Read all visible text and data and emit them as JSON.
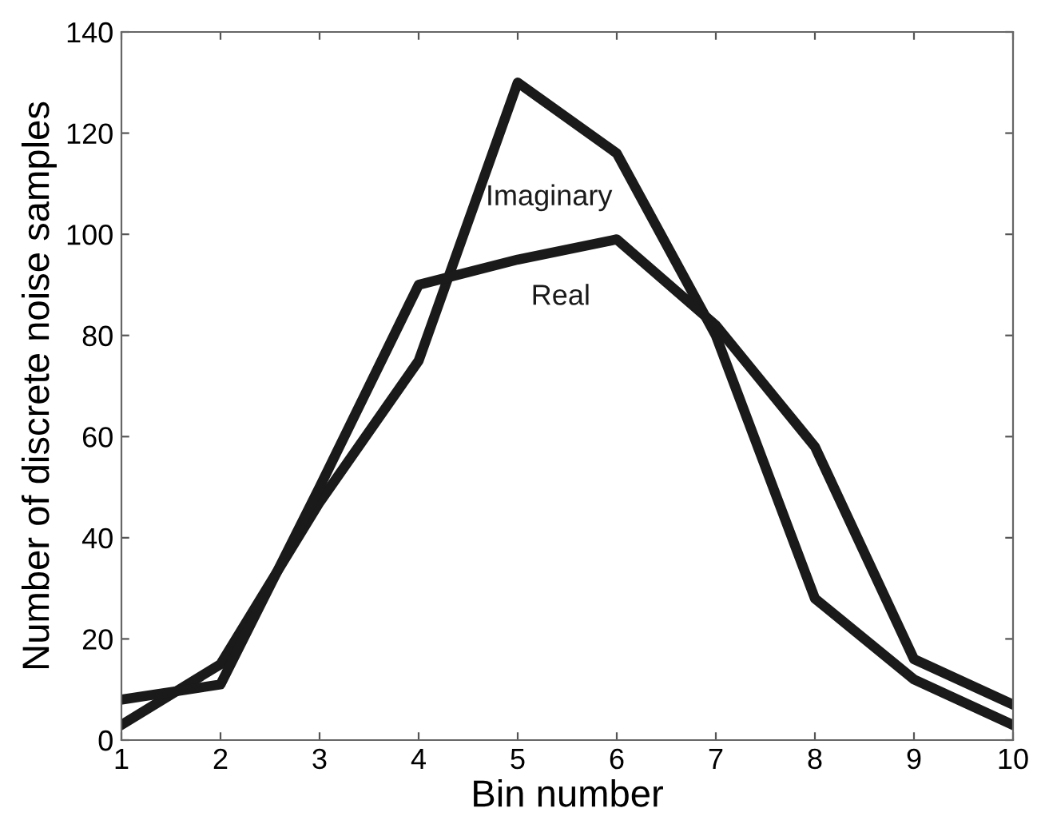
{
  "chart_data": {
    "type": "line",
    "xlabel": "Bin number",
    "ylabel": "Number of discrete noise samples",
    "x": [
      1,
      2,
      3,
      4,
      5,
      6,
      7,
      8,
      9,
      10
    ],
    "series": [
      {
        "name": "Imaginary",
        "color": "#1a1a1a",
        "values": [
          3,
          15,
          47,
          75,
          130,
          116,
          80,
          28,
          12,
          3
        ]
      },
      {
        "name": "Real",
        "color": "#1a1a1a",
        "values": [
          8,
          11,
          50,
          90,
          95,
          99,
          82,
          58,
          16,
          7
        ]
      }
    ],
    "xlim": [
      1,
      10
    ],
    "xticks": [
      1,
      2,
      3,
      4,
      5,
      6,
      7,
      8,
      9,
      10
    ],
    "ylim": [
      0,
      140
    ],
    "yticks": [
      0,
      20,
      40,
      60,
      80,
      100,
      120,
      140
    ],
    "grid": false,
    "legend": false,
    "marker": "none",
    "line_style": "solid"
  }
}
